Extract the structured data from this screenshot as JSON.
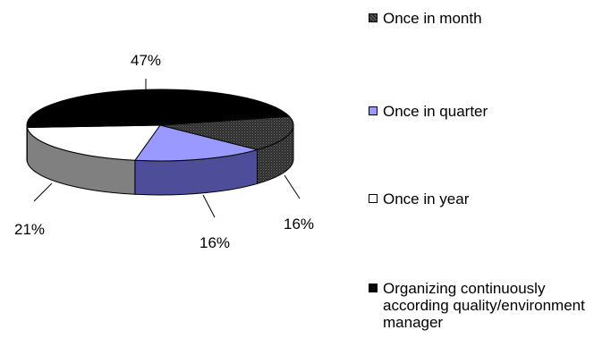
{
  "chart_data": {
    "type": "pie",
    "variant": "3d",
    "slices": [
      {
        "label": "Once in month",
        "value": 16,
        "value_label": "16%",
        "color": "#333333",
        "pattern": "dotted-dark",
        "side_color": "#222222"
      },
      {
        "label": "Once in quarter",
        "value": 16,
        "value_label": "16%",
        "color": "#9999ff",
        "side_color": "#4d4d99"
      },
      {
        "label": "Once in year",
        "value": 21,
        "value_label": "21%",
        "color": "#ffffff",
        "side_color": "#808080"
      },
      {
        "label": "Organizing continuously according quality/environment manager",
        "value": 47,
        "value_label": "47%",
        "color": "#000000",
        "side_color": "#000000"
      }
    ],
    "legend": {
      "position": "right",
      "entries": [
        "Once in month",
        "Once in quarter",
        "Once in year",
        "Organizing continuously according quality/environment manager"
      ]
    }
  }
}
